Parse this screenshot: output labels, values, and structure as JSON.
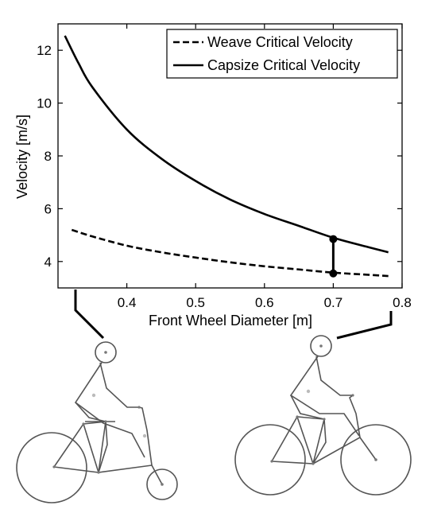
{
  "chart_data": {
    "type": "line",
    "title": "",
    "xlabel": "Front Wheel Diameter [m]",
    "ylabel": "Velocity [m/s]",
    "xlim": [
      0.3,
      0.8
    ],
    "ylim": [
      3,
      13
    ],
    "xticks": [
      0.4,
      0.5,
      0.6,
      0.7,
      0.8
    ],
    "yticks": [
      4,
      6,
      8,
      10,
      12
    ],
    "grid": false,
    "legend_position": "top-right",
    "series": [
      {
        "name": "Weave Critical Velocity",
        "style": "dashed",
        "x": [
          0.32,
          0.35,
          0.4,
          0.45,
          0.5,
          0.55,
          0.6,
          0.65,
          0.7,
          0.75,
          0.78
        ],
        "y": [
          5.2,
          4.95,
          4.6,
          4.35,
          4.15,
          3.97,
          3.82,
          3.7,
          3.58,
          3.5,
          3.45
        ]
      },
      {
        "name": "Capsize Critical Velocity",
        "style": "solid",
        "x": [
          0.31,
          0.33,
          0.35,
          0.4,
          0.45,
          0.5,
          0.55,
          0.6,
          0.65,
          0.7,
          0.75,
          0.78
        ],
        "y": [
          12.55,
          11.5,
          10.6,
          9.0,
          7.9,
          7.05,
          6.35,
          5.8,
          5.35,
          4.9,
          4.55,
          4.35
        ]
      }
    ],
    "highlight": {
      "x": 0.7,
      "y_low": 3.55,
      "y_high": 4.85
    }
  },
  "illustrations": {
    "left": "bicycle-with-small-front-wheel",
    "right": "bicycle-with-large-front-wheel"
  }
}
